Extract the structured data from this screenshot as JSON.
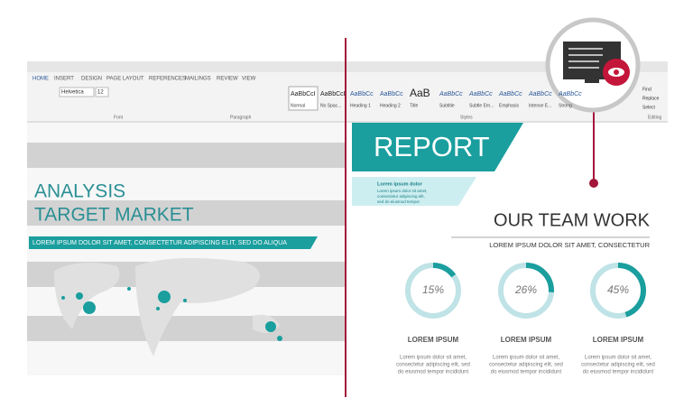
{
  "ribbon": {
    "tabs": [
      "HOME",
      "INSERT",
      "DESIGN",
      "PAGE LAYOUT",
      "REFERENCES",
      "MAILINGS",
      "REVIEW",
      "VIEW"
    ],
    "font_name": "Helvetica",
    "font_size": "12",
    "styles": [
      {
        "sample": "AaBbCcI",
        "name": "Normal"
      },
      {
        "sample": "AaBbCcI",
        "name": "No Spac..."
      },
      {
        "sample": "AaBbCc",
        "name": "Heading 1"
      },
      {
        "sample": "AaBbCc",
        "name": "Heading 2"
      },
      {
        "sample": "AaB",
        "name": "Title"
      },
      {
        "sample": "AaBbCc",
        "name": "Subtitle"
      },
      {
        "sample": "AaBbCc",
        "name": "Subtle Em..."
      },
      {
        "sample": "AaBbCc",
        "name": "Emphasis"
      },
      {
        "sample": "AaBbCc",
        "name": "Intense E..."
      },
      {
        "sample": "AaBbCc",
        "name": "Strong"
      }
    ],
    "groups": [
      "Font",
      "Paragraph",
      "Styles",
      "Editing"
    ],
    "editing": [
      "Find",
      "Replace",
      "Select"
    ]
  },
  "left_page": {
    "title_lines": [
      "ANALYSIS",
      "TARGET MARKET"
    ],
    "banner": "LOREM IPSUM DOLOR SIT AMET, CONSECTETUR ADIPISCING ELIT, SED DO ALIQUA"
  },
  "right_page": {
    "title": "REPORT",
    "subtitle": "Lorem ipsum dolor",
    "body_lines": [
      "Lorem ipsum dolor sit amet,",
      "consectetur adipiscing elit,",
      "sed do eiusmod tempor"
    ],
    "heading": "OUR TEAM WORK",
    "subheading": "LOREM IPSUM DOLOR SIT AMET, CONSECTETUR",
    "stats": [
      {
        "percent": 15,
        "label": "15%",
        "title": "LOREM IPSUM",
        "lines": [
          "Lorem ipsum dolor sit amet,",
          "consectetur adipiscing elit, sed",
          "do eiusmod tempor incididunt"
        ]
      },
      {
        "percent": 26,
        "label": "26%",
        "title": "LOREM IPSUM",
        "lines": [
          "Lorem ipsum dolor sit amet,",
          "consectetur adipiscing elit, sed",
          "do eiusmod tempor incididunt"
        ]
      },
      {
        "percent": 45,
        "label": "45%",
        "title": "LOREM IPSUM",
        "lines": [
          "Lorem ipsum dolor sit amet,",
          "consectetur adipiscing elit, sed",
          "do eiusmod tempor incididunt"
        ]
      }
    ]
  }
}
